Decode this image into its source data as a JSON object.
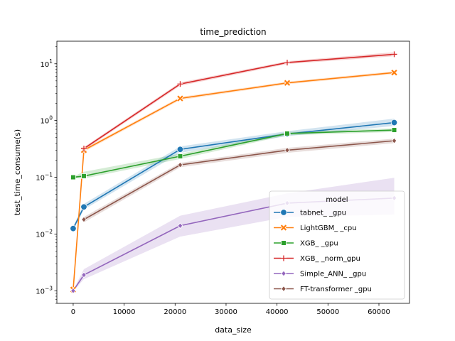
{
  "chart_data": {
    "type": "line",
    "title": "time_prediction",
    "xlabel": "data_size",
    "ylabel": "test_time_consume(s)",
    "xlim": [
      -3200,
      66000
    ],
    "ylim": [
      0.0006,
      25
    ],
    "yscale": "log",
    "x_ticks": [
      0,
      10000,
      20000,
      30000,
      40000,
      50000,
      60000
    ],
    "x_tick_labels": [
      "0",
      "10000",
      "20000",
      "30000",
      "40000",
      "50000",
      "60000"
    ],
    "y_ticks": [
      0.001,
      0.01,
      0.1,
      1,
      10
    ],
    "y_tick_labels": [
      {
        "base": "10",
        "exp": "−3"
      },
      {
        "base": "10",
        "exp": "−2"
      },
      {
        "base": "10",
        "exp": "−1"
      },
      {
        "base": "10",
        "exp": "0"
      },
      {
        "base": "10",
        "exp": "1"
      }
    ],
    "legend": {
      "title": "model",
      "placement": "lower-right"
    },
    "grid": false,
    "series": [
      {
        "name": "tabnet_ _gpu",
        "color": "#1f77b4",
        "marker": "circle",
        "x": [
          0,
          2100,
          21000,
          42000,
          63000
        ],
        "values": [
          0.0125,
          0.03,
          0.31,
          0.58,
          0.92
        ],
        "band_low": [
          0.0115,
          0.027,
          0.27,
          0.53,
          0.8
        ],
        "band_high": [
          0.0135,
          0.034,
          0.35,
          0.65,
          1.08
        ]
      },
      {
        "name": "LightGBM_ _cpu",
        "color": "#ff7f0e",
        "marker": "x",
        "x": [
          0,
          2100,
          21000,
          42000,
          63000
        ],
        "values": [
          0.00105,
          0.3,
          2.45,
          4.6,
          7.0
        ],
        "band_low": [
          0.001,
          0.28,
          2.3,
          4.35,
          6.6
        ],
        "band_high": [
          0.0011,
          0.32,
          2.6,
          4.85,
          7.4
        ]
      },
      {
        "name": "XGB_ _gpu",
        "color": "#2ca02c",
        "marker": "square",
        "x": [
          0,
          2100,
          21000,
          42000,
          63000
        ],
        "values": [
          0.1,
          0.105,
          0.235,
          0.59,
          0.68
        ],
        "band_low": [
          0.097,
          0.095,
          0.21,
          0.55,
          0.63
        ],
        "band_high": [
          0.103,
          0.125,
          0.26,
          0.63,
          0.73
        ]
      },
      {
        "name": "XGB_ _norm_gpu",
        "color": "#d62728",
        "marker": "plus",
        "x": [
          2100,
          21000,
          42000,
          63000
        ],
        "values": [
          0.32,
          4.4,
          10.5,
          14.7
        ],
        "band_low": [
          0.3,
          4.1,
          9.9,
          13.6
        ],
        "band_high": [
          0.34,
          4.7,
          11.1,
          16.0
        ]
      },
      {
        "name": "Simple_ANN_ _gpu",
        "color": "#9467bd",
        "marker": "diamond",
        "x": [
          0,
          2100,
          21000,
          42000,
          63000
        ],
        "values": [
          0.001,
          0.0019,
          0.014,
          0.035,
          0.043
        ],
        "band_low": [
          0.00097,
          0.0016,
          0.009,
          0.02,
          0.022
        ],
        "band_high": [
          0.00103,
          0.0024,
          0.021,
          0.052,
          0.098
        ]
      },
      {
        "name": "FT-transformer _gpu",
        "color": "#8c564b",
        "marker": "diamond",
        "x": [
          2100,
          21000,
          42000,
          63000
        ],
        "values": [
          0.018,
          0.165,
          0.3,
          0.44
        ],
        "band_low": [
          0.016,
          0.15,
          0.27,
          0.4
        ],
        "band_high": [
          0.02,
          0.18,
          0.33,
          0.48
        ]
      }
    ]
  }
}
